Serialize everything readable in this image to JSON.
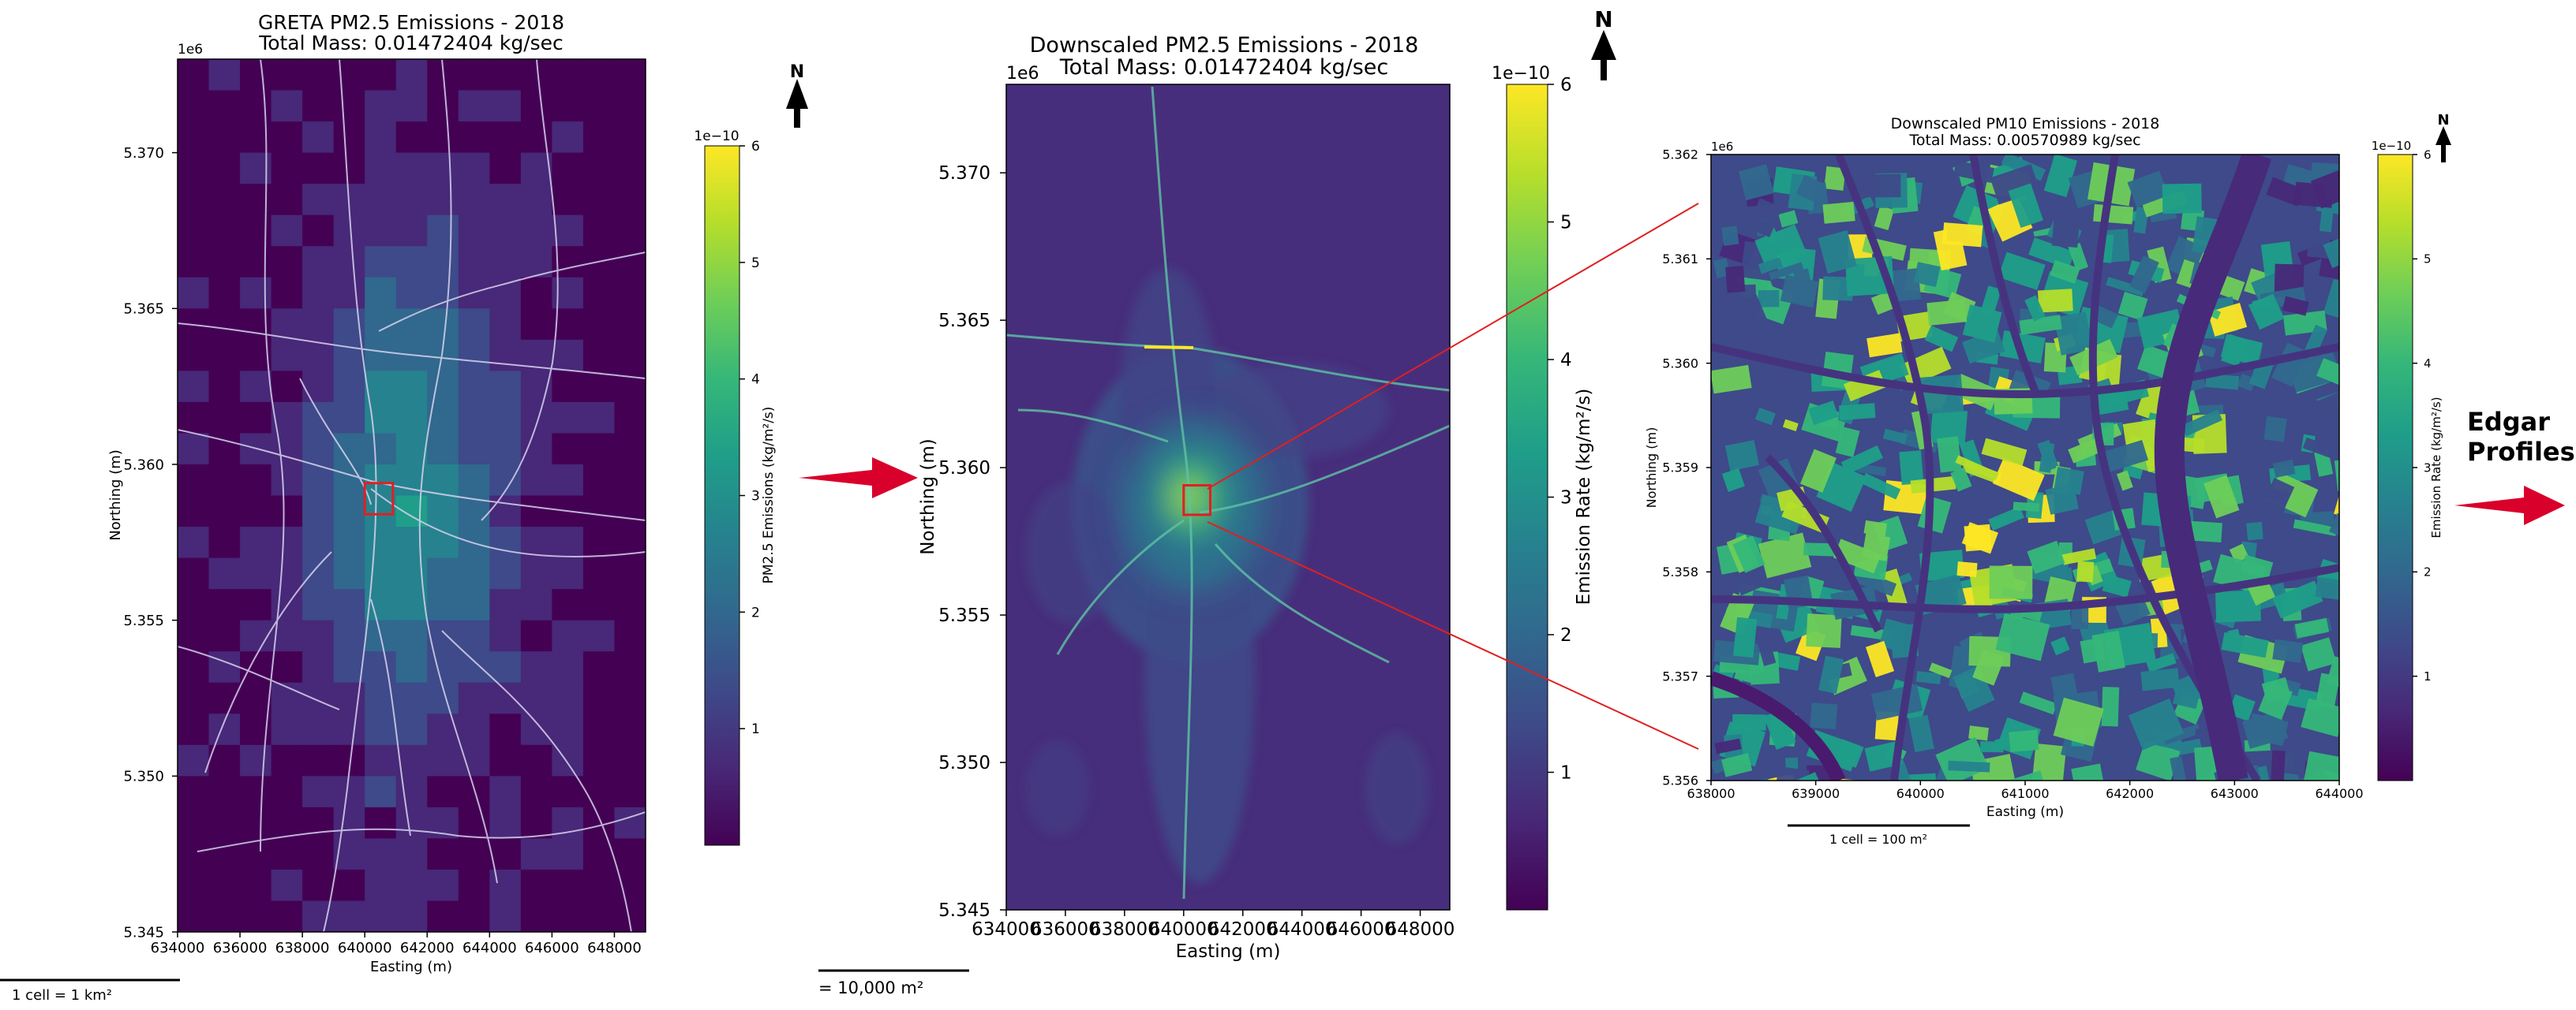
{
  "chart_data": [
    {
      "type": "heatmap",
      "panel": "greta",
      "title": "GRETA PM2.5 Emissions - 2018",
      "subtitle": "Total Mass: 0.01472404 kg/sec",
      "xlabel": "Easting (m)",
      "ylabel": "Northing (m)",
      "xlim": [
        634000,
        649000
      ],
      "ylim": [
        5.345,
        5.373
      ],
      "x_ticks": [
        "634000",
        "636000",
        "638000",
        "640000",
        "642000",
        "644000",
        "646000",
        "648000"
      ],
      "x_tick_values": [
        634000,
        636000,
        638000,
        640000,
        642000,
        644000,
        646000,
        648000
      ],
      "y_ticks": [
        "5.345",
        "5.350",
        "5.355",
        "5.360",
        "5.365",
        "5.370"
      ],
      "y_tick_values": [
        5.345,
        5.35,
        5.355,
        5.36,
        5.365,
        5.37
      ],
      "y_offset_label": "1e6",
      "colorbar": {
        "label": "PM2.5 Emissions (kg/m²/s)",
        "range": [
          0,
          6
        ],
        "ticks": [
          "1",
          "2",
          "3",
          "4",
          "5",
          "6"
        ],
        "tick_values": [
          1,
          2,
          3,
          4,
          5,
          6
        ],
        "offset_label": "1e−10"
      },
      "north_label": "N",
      "scale_label": "1 cell = 1 km²"
    },
    {
      "type": "heatmap",
      "panel": "downscaled-pm25",
      "title": "Downscaled PM2.5 Emissions - 2018",
      "subtitle": "Total Mass: 0.01472404 kg/sec",
      "xlabel": "Easting (m)",
      "ylabel": "Northing (m)",
      "xlim": [
        634000,
        649000
      ],
      "ylim": [
        5.345,
        5.373
      ],
      "x_ticks": [
        "634000",
        "636000",
        "638000",
        "640000",
        "642000",
        "644000",
        "646000",
        "648000"
      ],
      "x_tick_values": [
        634000,
        636000,
        638000,
        640000,
        642000,
        644000,
        646000,
        648000
      ],
      "y_ticks": [
        "5.345",
        "5.350",
        "5.355",
        "5.360",
        "5.365",
        "5.370"
      ],
      "y_tick_values": [
        5.345,
        5.35,
        5.355,
        5.36,
        5.365,
        5.37
      ],
      "y_offset_label": "1e6",
      "colorbar": {
        "label": "Emission Rate (kg/m²/s)",
        "range": [
          0,
          6
        ],
        "ticks": [
          "1",
          "2",
          "3",
          "4",
          "5",
          "6"
        ],
        "tick_values": [
          1,
          2,
          3,
          4,
          5,
          6
        ],
        "offset_label": "1e−10"
      },
      "north_label": "N",
      "scale_label": "= 10,000 m²"
    },
    {
      "type": "heatmap",
      "panel": "downscaled-pm10",
      "title": "Downscaled PM10 Emissions - 2018",
      "subtitle": "Total Mass: 0.00570989 kg/sec",
      "xlabel": "Easting (m)",
      "ylabel": "Northing (m)",
      "xlim": [
        638000,
        644000
      ],
      "ylim": [
        5.356,
        5.362
      ],
      "x_ticks": [
        "638000",
        "639000",
        "640000",
        "641000",
        "642000",
        "643000",
        "644000"
      ],
      "x_tick_values": [
        638000,
        639000,
        640000,
        641000,
        642000,
        643000,
        644000
      ],
      "y_ticks": [
        "5.356",
        "5.357",
        "5.358",
        "5.359",
        "5.360",
        "5.361",
        "5.362"
      ],
      "y_tick_values": [
        5.356,
        5.357,
        5.358,
        5.359,
        5.36,
        5.361,
        5.362
      ],
      "y_offset_label": "1e6",
      "colorbar": {
        "label": "Emission Rate (kg/m²/s)",
        "range": [
          0,
          6
        ],
        "ticks": [
          "1",
          "2",
          "3",
          "4",
          "5",
          "6"
        ],
        "tick_values": [
          1,
          2,
          3,
          4,
          5,
          6
        ],
        "offset_label": "1e−10"
      },
      "north_label": "N",
      "scale_label": "1 cell = 100 m²"
    }
  ],
  "zoom_box": {
    "x": [
      640000,
      640900
    ],
    "y": [
      5.3584,
      5.3594
    ],
    "color": "#e02020"
  },
  "next_step": {
    "line1": "Edgar",
    "line2": "Profiles"
  },
  "colors": {
    "arrow": "#d9002b",
    "viridis": [
      "#440154",
      "#482878",
      "#3e4a89",
      "#31688e",
      "#26828e",
      "#1f9e89",
      "#35b779",
      "#6ece58",
      "#b5de2b",
      "#fde725"
    ],
    "road": "#d6d2ee",
    "frame": "#000000"
  }
}
